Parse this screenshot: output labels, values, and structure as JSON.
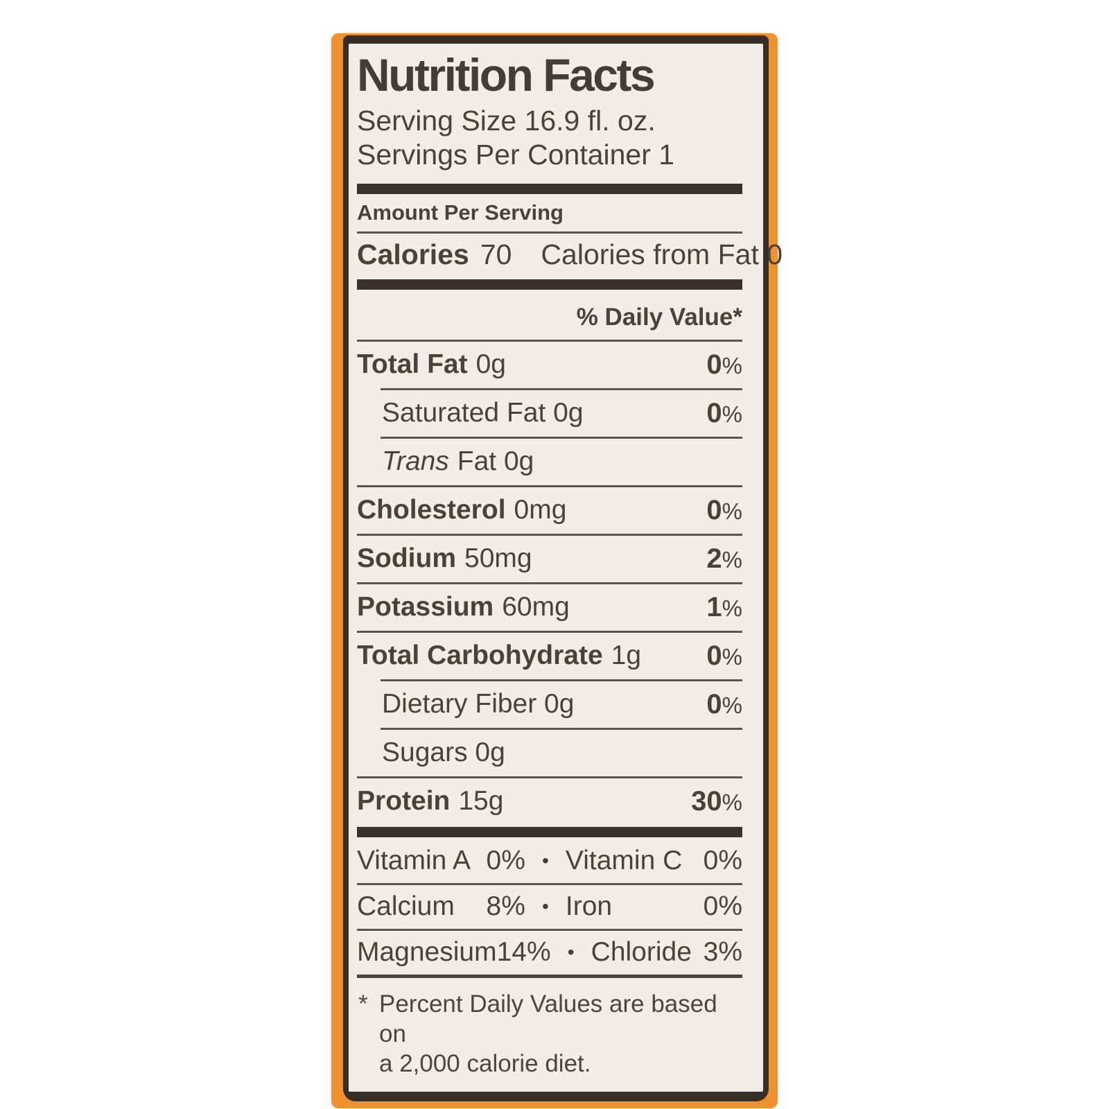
{
  "page": {
    "background": "#ffffff"
  },
  "label": {
    "colors": {
      "orange_wrap": "#ef912f",
      "panel_bg": "#f1ede6",
      "border_dark": "#362d27",
      "text": "#494239",
      "rule": "#5b544c"
    },
    "title": "Nutrition Facts",
    "serving_line1": "Serving Size 16.9 fl. oz.",
    "serving_line2": "Servings Per Container 1",
    "amount_per_serving": "Amount Per Serving",
    "calories": {
      "label": "Calories",
      "value": "70",
      "from_fat": "Calories from Fat 0"
    },
    "daily_value_header": "% Daily Value*",
    "percent_sign": "%",
    "bullet": "•",
    "rows": {
      "total_fat": {
        "name": "Total Fat",
        "amount": "0g",
        "dv": "0"
      },
      "saturated_fat": {
        "name": "Saturated Fat 0g",
        "dv": "0"
      },
      "trans_fat": {
        "name_italic": "Trans",
        "amount": "Fat 0g"
      },
      "cholesterol": {
        "name": "Cholesterol",
        "amount": "0mg",
        "dv": "0"
      },
      "sodium": {
        "name": "Sodium",
        "amount": "50mg",
        "dv": "2"
      },
      "potassium": {
        "name": "Potassium",
        "amount": "60mg",
        "dv": "1"
      },
      "total_carbohydrate": {
        "name": "Total Carbohydrate",
        "amount": "1g",
        "dv": "0"
      },
      "dietary_fiber": {
        "name": "Dietary Fiber 0g",
        "dv": "0"
      },
      "sugars": {
        "name": "Sugars 0g"
      },
      "protein": {
        "name": "Protein",
        "amount": "15g",
        "dv": "30"
      }
    },
    "micronutrients": [
      {
        "left_name": "Vitamin A",
        "left_value": "0%",
        "right_name": "Vitamin C",
        "right_value": "0%"
      },
      {
        "left_name": "Calcium",
        "left_value": "8%",
        "right_name": "Iron",
        "right_value": "0%"
      },
      {
        "left_name": "Magnesium",
        "left_value": "14%",
        "right_name": "Chloride",
        "right_value": "3%"
      }
    ],
    "footnote": {
      "star": "*",
      "line1": "Percent Daily Values are based on",
      "line2": "a 2,000 calorie diet."
    }
  }
}
